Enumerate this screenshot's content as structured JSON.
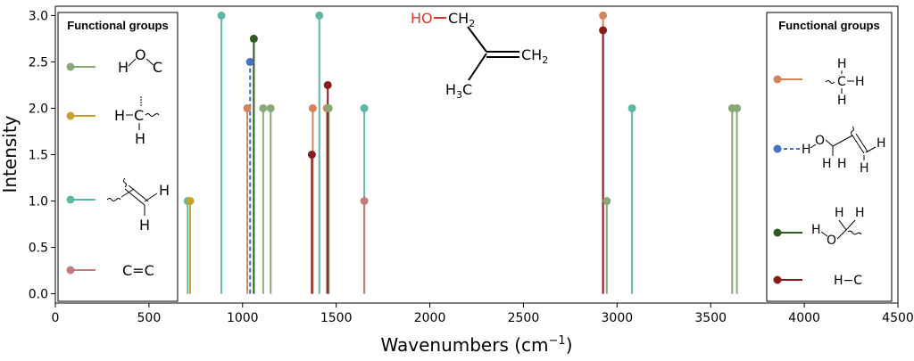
{
  "chart_data": {
    "type": "stem",
    "xlabel": "Wavenumbers (cm",
    "xlabel_sup": "−1",
    "xlabel_close": ")",
    "ylabel": "Intensity",
    "xlim": [
      0,
      4500
    ],
    "ylim": [
      -0.1,
      3.1
    ],
    "xticks": [
      "0",
      "500",
      "1000",
      "1500",
      "2000",
      "2500",
      "3000",
      "3500",
      "4000",
      "4500"
    ],
    "xtick_values": [
      0,
      500,
      1000,
      1500,
      2000,
      2500,
      3000,
      3500,
      4000,
      4500
    ],
    "yticks": [
      "0.0",
      "0.5",
      "1.0",
      "1.5",
      "2.0",
      "2.5",
      "3.0"
    ],
    "ytick_values": [
      0,
      0.5,
      1.0,
      1.5,
      2.0,
      2.5,
      3.0
    ],
    "series": [
      {
        "color": "#5fb8a6",
        "dashed": false,
        "points": [
          [
            707,
            1.0
          ],
          [
            887,
            3.0
          ],
          [
            1410,
            3.0
          ],
          [
            1650,
            2.0
          ],
          [
            3080,
            2.0
          ]
        ]
      },
      {
        "color": "#c8a030",
        "dashed": false,
        "points": [
          [
            720,
            1.0
          ]
        ]
      },
      {
        "color": "#d4835e",
        "dashed": false,
        "points": [
          [
            1025,
            2.0
          ],
          [
            1375,
            2.0
          ],
          [
            1450,
            2.0
          ],
          [
            2925,
            3.0
          ]
        ]
      },
      {
        "color": "#4472c4",
        "dashed": true,
        "points": [
          [
            1040,
            2.5
          ]
        ]
      },
      {
        "color": "#2d5b1f",
        "dashed": false,
        "points": [
          [
            1060,
            2.75
          ]
        ]
      },
      {
        "color": "#89a878",
        "dashed": false,
        "points": [
          [
            1110,
            2.0
          ],
          [
            1150,
            2.0
          ],
          [
            1460,
            2.0
          ],
          [
            2945,
            1.0
          ],
          [
            3615,
            2.0
          ],
          [
            3640,
            2.0
          ]
        ]
      },
      {
        "color": "#8b1a1a",
        "dashed": false,
        "points": [
          [
            1370,
            1.5
          ],
          [
            1455,
            2.25
          ],
          [
            2925,
            2.84
          ]
        ]
      },
      {
        "color": "#c47b7b",
        "dashed": false,
        "points": [
          [
            1650,
            1.0
          ]
        ]
      }
    ]
  },
  "legend_left": {
    "title": "Functional groups",
    "items": [
      {
        "color": "#89a878",
        "dashed": false
      },
      {
        "color": "#c8a030",
        "dashed": false
      },
      {
        "color": "#5fb8a6",
        "dashed": false
      },
      {
        "color": "#c47b7b",
        "dashed": false
      }
    ]
  },
  "legend_right": {
    "title": "Functional groups",
    "items": [
      {
        "color": "#d4835e",
        "dashed": false
      },
      {
        "color": "#4472c4",
        "dashed": true
      },
      {
        "color": "#2d5b1f",
        "dashed": false
      },
      {
        "color": "#8b1a1a",
        "dashed": false
      }
    ]
  },
  "molecule": {
    "ho": "HO",
    "ch2_top": "CH",
    "ch2_right": "CH",
    "h3c": "H",
    "h3c_c": "C",
    "sub2": "2",
    "sub3": "3"
  },
  "glyphs": {
    "h": "H",
    "o": "O",
    "c": "C",
    "ceqc": "C=C",
    "hc": "H−C"
  }
}
